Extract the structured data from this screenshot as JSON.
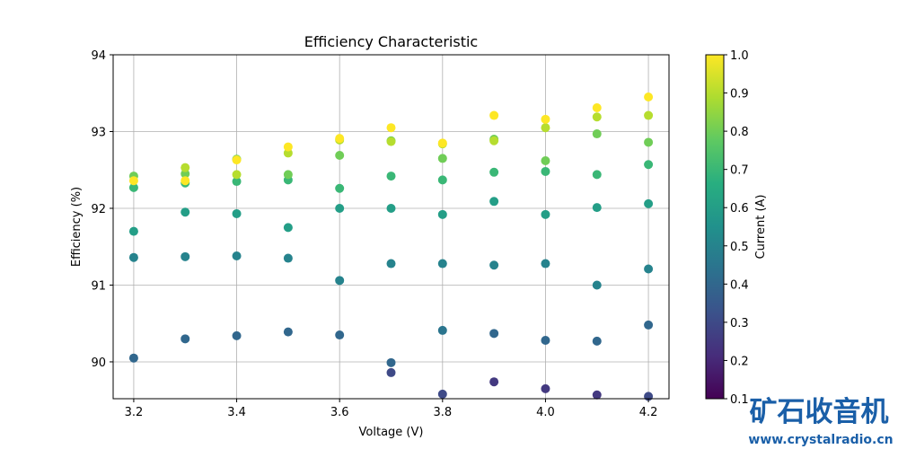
{
  "chart_data": {
    "type": "scatter",
    "title": "Efficiency Characteristic",
    "xlabel": "Voltage (V)",
    "ylabel": "Efficiency (%)",
    "xlim": [
      3.16,
      4.24
    ],
    "ylim": [
      89.52,
      94
    ],
    "xticks": [
      3.2,
      3.4,
      3.6,
      3.8,
      4.0,
      4.2
    ],
    "xtick_labels": [
      "3.2",
      "3.4",
      "3.6",
      "3.8",
      "4.0",
      "4.2"
    ],
    "yticks": [
      90,
      91,
      92,
      93,
      94
    ],
    "ytick_labels": [
      "90",
      "91",
      "92",
      "93",
      "94"
    ],
    "grid": true,
    "colormap": "viridis",
    "colorbar": {
      "label": "Current (A)",
      "range": [
        0.1,
        1.0
      ],
      "ticks": [
        0.1,
        0.2,
        0.3,
        0.4,
        0.5,
        0.6,
        0.7,
        0.8,
        0.9,
        1.0
      ],
      "tick_labels": [
        "0.1",
        "0.2",
        "0.3",
        "0.4",
        "0.5",
        "0.6",
        "0.7",
        "0.8",
        "0.9",
        "1.0"
      ]
    },
    "point_fields": [
      "voltage",
      "efficiency",
      "current"
    ],
    "points": [
      [
        3.2,
        92.42,
        0.8
      ],
      [
        3.2,
        92.36,
        1.0
      ],
      [
        3.2,
        92.27,
        0.7
      ],
      [
        3.2,
        91.7,
        0.6
      ],
      [
        3.2,
        91.36,
        0.5
      ],
      [
        3.2,
        90.05,
        0.4
      ],
      [
        3.3,
        92.53,
        0.9
      ],
      [
        3.3,
        92.45,
        0.8
      ],
      [
        3.3,
        92.33,
        0.7
      ],
      [
        3.3,
        92.36,
        1.0
      ],
      [
        3.3,
        91.95,
        0.6
      ],
      [
        3.3,
        91.37,
        0.5
      ],
      [
        3.3,
        90.3,
        0.4
      ],
      [
        3.4,
        92.64,
        0.8
      ],
      [
        3.4,
        92.63,
        1.0
      ],
      [
        3.4,
        92.44,
        0.9
      ],
      [
        3.4,
        92.35,
        0.7
      ],
      [
        3.4,
        91.93,
        0.6
      ],
      [
        3.4,
        91.38,
        0.5
      ],
      [
        3.4,
        90.34,
        0.4
      ],
      [
        3.5,
        92.72,
        0.9
      ],
      [
        3.5,
        92.8,
        1.0
      ],
      [
        3.5,
        92.44,
        0.8
      ],
      [
        3.5,
        92.37,
        0.7
      ],
      [
        3.5,
        91.75,
        0.6
      ],
      [
        3.5,
        91.35,
        0.5
      ],
      [
        3.5,
        90.39,
        0.4
      ],
      [
        3.6,
        92.89,
        0.9
      ],
      [
        3.6,
        92.91,
        1.0
      ],
      [
        3.6,
        92.69,
        0.8
      ],
      [
        3.6,
        92.26,
        0.7
      ],
      [
        3.6,
        92.0,
        0.6
      ],
      [
        3.6,
        91.06,
        0.5
      ],
      [
        3.6,
        90.35,
        0.4
      ],
      [
        3.7,
        93.05,
        1.0
      ],
      [
        3.7,
        92.88,
        0.8
      ],
      [
        3.7,
        92.87,
        0.9
      ],
      [
        3.7,
        92.42,
        0.7
      ],
      [
        3.7,
        92.0,
        0.6
      ],
      [
        3.7,
        91.28,
        0.5
      ],
      [
        3.7,
        89.99,
        0.4
      ],
      [
        3.7,
        89.86,
        0.3
      ],
      [
        3.8,
        92.85,
        1.0
      ],
      [
        3.8,
        92.84,
        0.9
      ],
      [
        3.8,
        92.65,
        0.8
      ],
      [
        3.8,
        92.37,
        0.7
      ],
      [
        3.8,
        91.92,
        0.6
      ],
      [
        3.8,
        91.28,
        0.5
      ],
      [
        3.8,
        90.41,
        0.45
      ],
      [
        3.8,
        89.58,
        0.3
      ],
      [
        3.9,
        93.21,
        1.0
      ],
      [
        3.9,
        92.9,
        0.8
      ],
      [
        3.9,
        92.88,
        0.9
      ],
      [
        3.9,
        92.47,
        0.7
      ],
      [
        3.9,
        92.09,
        0.6
      ],
      [
        3.9,
        91.26,
        0.5
      ],
      [
        3.9,
        90.37,
        0.4
      ],
      [
        3.9,
        89.74,
        0.25
      ],
      [
        4.0,
        93.16,
        1.0
      ],
      [
        4.0,
        93.05,
        0.9
      ],
      [
        4.0,
        92.62,
        0.8
      ],
      [
        4.0,
        92.48,
        0.7
      ],
      [
        4.0,
        91.92,
        0.6
      ],
      [
        4.0,
        91.28,
        0.5
      ],
      [
        4.0,
        90.28,
        0.4
      ],
      [
        4.0,
        89.65,
        0.25
      ],
      [
        4.1,
        93.31,
        1.0
      ],
      [
        4.1,
        93.19,
        0.9
      ],
      [
        4.1,
        92.97,
        0.8
      ],
      [
        4.1,
        92.44,
        0.7
      ],
      [
        4.1,
        92.01,
        0.6
      ],
      [
        4.1,
        91.0,
        0.5
      ],
      [
        4.1,
        90.27,
        0.4
      ],
      [
        4.1,
        89.57,
        0.25
      ],
      [
        4.2,
        93.45,
        1.0
      ],
      [
        4.2,
        93.21,
        0.9
      ],
      [
        4.2,
        92.86,
        0.8
      ],
      [
        4.2,
        92.57,
        0.7
      ],
      [
        4.2,
        92.06,
        0.6
      ],
      [
        4.2,
        91.21,
        0.5
      ],
      [
        4.2,
        90.48,
        0.4
      ],
      [
        4.2,
        89.55,
        0.3
      ]
    ]
  },
  "watermark": {
    "text_cn": "矿石收音机",
    "url": "www.crystalradio.cn",
    "color": "#1a5fa8"
  }
}
